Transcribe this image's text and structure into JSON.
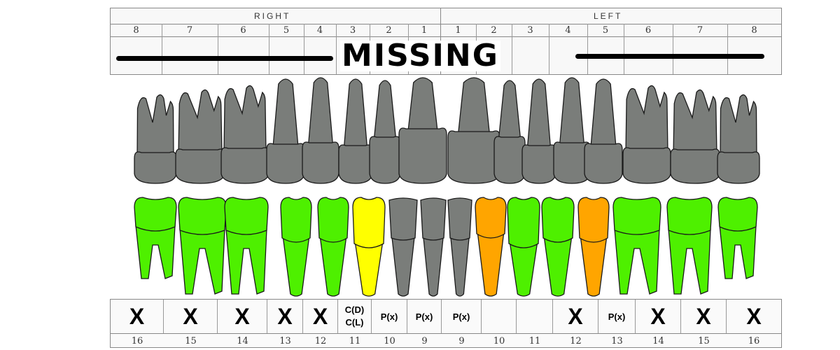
{
  "header": {
    "right_label": "RIGHT",
    "left_label": "LEFT",
    "upper_numbers": [
      "8",
      "7",
      "6",
      "5",
      "4",
      "3",
      "2",
      "1",
      "1",
      "2",
      "3",
      "4",
      "5",
      "6",
      "7",
      "8"
    ],
    "banner_text": "MISSING"
  },
  "lower_chart": {
    "cells": [
      {
        "mark": "X",
        "number": "16"
      },
      {
        "mark": "X",
        "number": "15"
      },
      {
        "mark": "X",
        "number": "14"
      },
      {
        "mark": "X",
        "number": "13"
      },
      {
        "mark": "X",
        "number": "12"
      },
      {
        "mark": "C(D)\nC(L)",
        "number": "11"
      },
      {
        "mark": "P(x)",
        "number": "10"
      },
      {
        "mark": "P(x)",
        "number": "9"
      },
      {
        "mark": "P(x)",
        "number": "9"
      },
      {
        "mark": "",
        "number": "10"
      },
      {
        "mark": "",
        "number": "11"
      },
      {
        "mark": "X",
        "number": "12"
      },
      {
        "mark": "P(x)",
        "number": "13"
      },
      {
        "mark": "X",
        "number": "14"
      },
      {
        "mark": "X",
        "number": "15"
      },
      {
        "mark": "X",
        "number": "16"
      }
    ]
  },
  "colors": {
    "upper_teeth": "#7a7d7a",
    "healthy": "#4ef000",
    "yellow": "#ffff00",
    "orange": "#ffa500",
    "grey_lower": "#7a7d7a",
    "outline": "#1a1a1a"
  },
  "lower_tooth_colors": [
    "healthy",
    "healthy",
    "healthy",
    "healthy",
    "healthy",
    "yellow",
    "grey_lower",
    "grey_lower",
    "grey_lower",
    "orange",
    "healthy",
    "healthy",
    "orange",
    "healthy",
    "healthy",
    "healthy"
  ]
}
